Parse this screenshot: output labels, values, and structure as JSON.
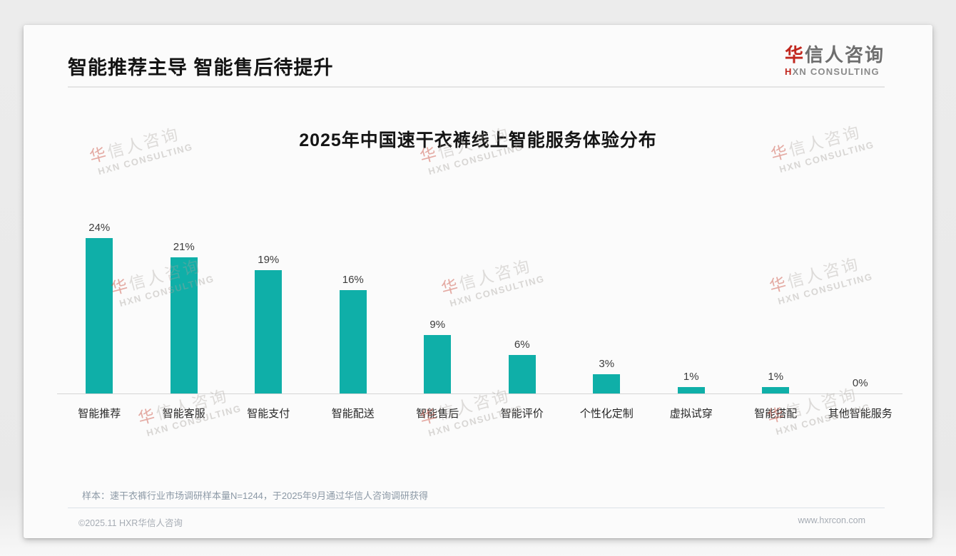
{
  "page_title": "智能推荐主导 智能售后待提升",
  "logo": {
    "cn_first": "华",
    "cn_rest": "信人咨询",
    "en_first": "H",
    "en_rest": "XN CONSULTING"
  },
  "watermark": {
    "cn_first": "华",
    "cn_rest": "信人咨询",
    "en": "HXN CONSULTING"
  },
  "chart_data": {
    "type": "bar",
    "title": "2025年中国速干衣裤线上智能服务体验分布",
    "categories": [
      "智能推荐",
      "智能客服",
      "智能支付",
      "智能配送",
      "智能售后",
      "智能评价",
      "个性化定制",
      "虚拟试穿",
      "智能搭配",
      "其他智能服务"
    ],
    "values": [
      24,
      21,
      19,
      16,
      9,
      6,
      3,
      1,
      1,
      0
    ],
    "value_labels": [
      "24%",
      "21%",
      "19%",
      "16%",
      "9%",
      "6%",
      "3%",
      "1%",
      "1%",
      "0%"
    ],
    "unit": "%",
    "xlabel": "",
    "ylabel": "",
    "ylim": [
      0,
      26
    ],
    "grid": false,
    "legend": false,
    "bar_color": "#0fafa8",
    "value_label_position": "above-bar",
    "axis_line_color": "#d6d6d6"
  },
  "source_note": "样本：速干衣裤行业市场调研样本量N=1244，于2025年9月通过华信人咨询调研获得",
  "footer": {
    "copyright": "©2025.11 HXR华信人咨询",
    "website": "www.hxrcon.com"
  }
}
